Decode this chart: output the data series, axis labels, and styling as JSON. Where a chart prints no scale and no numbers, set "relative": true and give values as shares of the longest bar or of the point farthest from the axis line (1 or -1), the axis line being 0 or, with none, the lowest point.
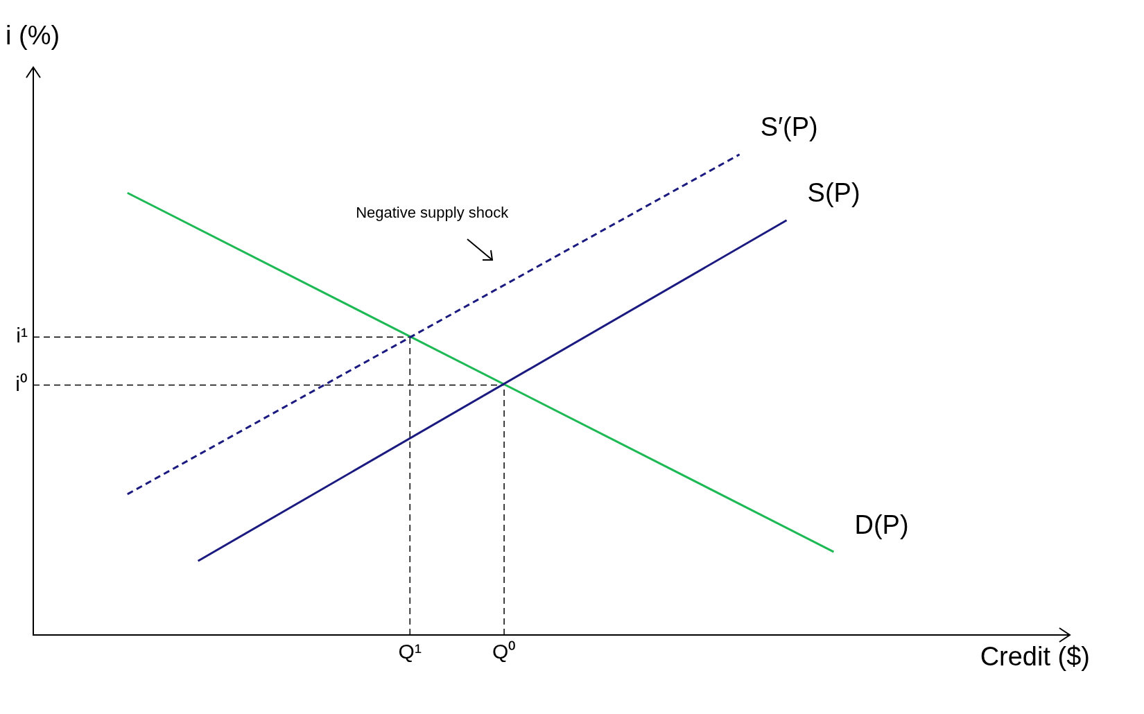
{
  "chart_data": {
    "type": "line",
    "ylabel": "i (%)",
    "xlabel": "Credit ($)",
    "relative": true,
    "categories": [
      null,
      null,
      null,
      null,
      null,
      null,
      null,
      null,
      null,
      null,
      null,
      null,
      null,
      null,
      null,
      null,
      "Q¹",
      null,
      null,
      null,
      "Q⁰",
      null,
      null,
      null,
      null,
      null,
      null,
      null,
      null,
      null,
      null,
      null,
      null,
      null,
      null,
      null,
      null,
      null,
      null,
      null,
      null,
      null,
      null,
      null,
      null
    ],
    "series": [
      {
        "name": "S′(P)",
        "color": "#1a1a80",
        "line_style": "dashed",
        "values": [
          null,
          null,
          null,
          null,
          0.293,
          null,
          null,
          null,
          null,
          null,
          null,
          null,
          null,
          null,
          null,
          null,
          null,
          null,
          null,
          null,
          null,
          null,
          null,
          null,
          null,
          null,
          null,
          null,
          null,
          null,
          1,
          null,
          null,
          null,
          null,
          null,
          null,
          null,
          null,
          null,
          null,
          null,
          null,
          null,
          null
        ]
      },
      {
        "name": "S(P)",
        "color": "#1a1a80",
        "line_style": "solid",
        "values": [
          null,
          null,
          null,
          null,
          null,
          null,
          null,
          0.154,
          null,
          null,
          null,
          null,
          null,
          null,
          null,
          null,
          null,
          null,
          null,
          null,
          null,
          null,
          null,
          null,
          null,
          null,
          null,
          null,
          null,
          null,
          null,
          null,
          0.863,
          null,
          null,
          null,
          null,
          null,
          null,
          null,
          null,
          null,
          null,
          null,
          null
        ]
      },
      {
        "name": "D(P)",
        "color": "#1db954",
        "line_style": "solid",
        "values": [
          null,
          null,
          null,
          null,
          0.92,
          null,
          null,
          null,
          null,
          null,
          null,
          null,
          null,
          null,
          null,
          null,
          null,
          null,
          null,
          null,
          null,
          null,
          null,
          null,
          null,
          null,
          null,
          null,
          null,
          null,
          null,
          null,
          null,
          null,
          0.173,
          null,
          null,
          null,
          null,
          null,
          null,
          null,
          null,
          null,
          null
        ]
      }
    ],
    "ref_lines": [
      {
        "axis": "y",
        "value": 0.62,
        "label": "i¹",
        "color": "#000000",
        "line_style": "dashed"
      },
      {
        "axis": "y",
        "value": 0.52,
        "label": "i⁰",
        "color": "#000000",
        "line_style": "dashed"
      },
      {
        "axis": "x",
        "value": "Q¹",
        "color": "#000000",
        "line_style": "dashed"
      },
      {
        "axis": "x",
        "value": "Q⁰",
        "color": "#000000",
        "line_style": "dashed"
      }
    ],
    "annotations": [
      "Negative supply shock"
    ],
    "marker": "none",
    "grid": false,
    "legend": false
  }
}
